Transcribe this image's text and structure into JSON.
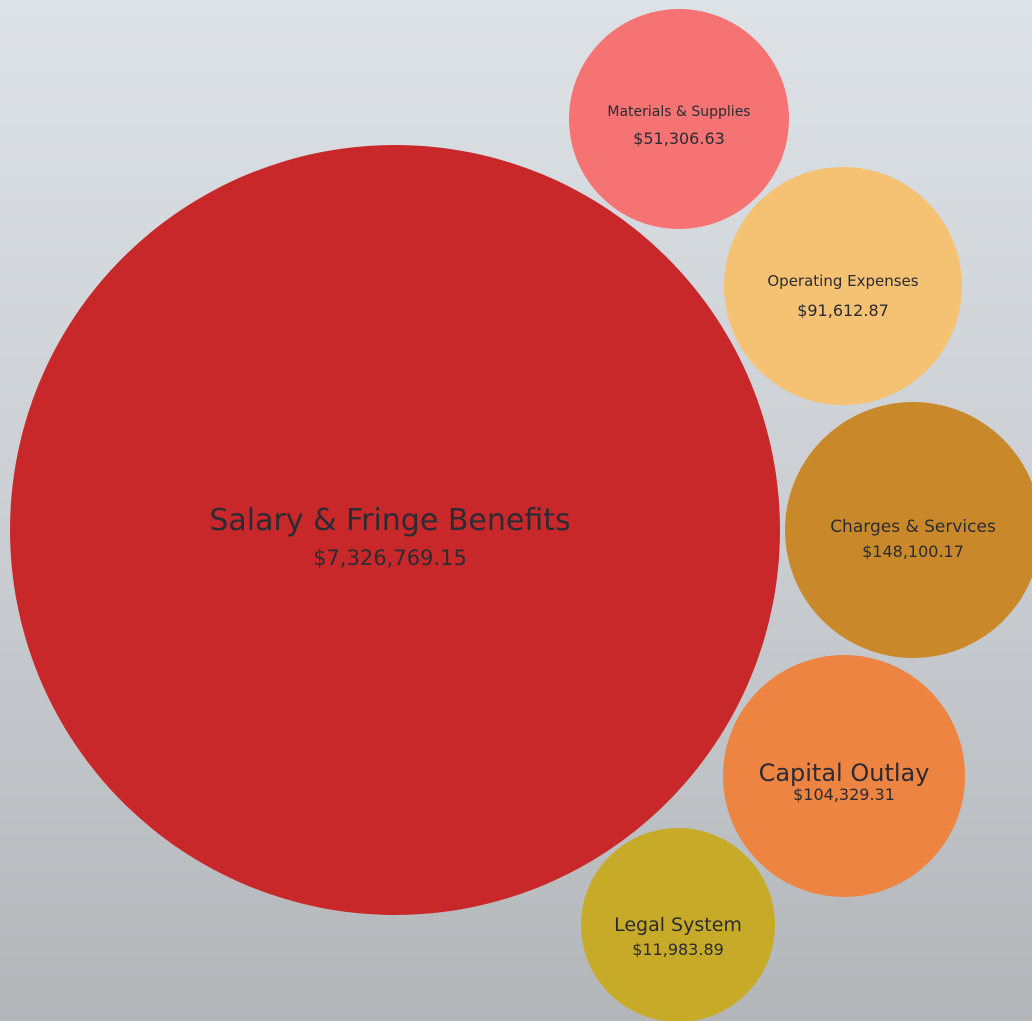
{
  "chart_data": {
    "type": "bubble",
    "series": [
      {
        "name": "Salary & Fringe Benefits",
        "value": 7326769.15,
        "label": "$7,326,769.15",
        "color": "#c9282a"
      },
      {
        "name": "Materials & Supplies",
        "value": 51306.63,
        "label": "$51,306.63",
        "color": "#f67373"
      },
      {
        "name": "Operating Expenses",
        "value": 91612.87,
        "label": "$91,612.87",
        "color": "#f5c173"
      },
      {
        "name": "Charges & Services",
        "value": 148100.17,
        "label": "$148,100.17",
        "color": "#c9892b"
      },
      {
        "name": "Capital Outlay",
        "value": 104329.31,
        "label": "$104,329.31",
        "color": "#ee8442"
      },
      {
        "name": "Legal System",
        "value": 11983.89,
        "label": "$11,983.89",
        "color": "#c7aa27"
      }
    ]
  }
}
